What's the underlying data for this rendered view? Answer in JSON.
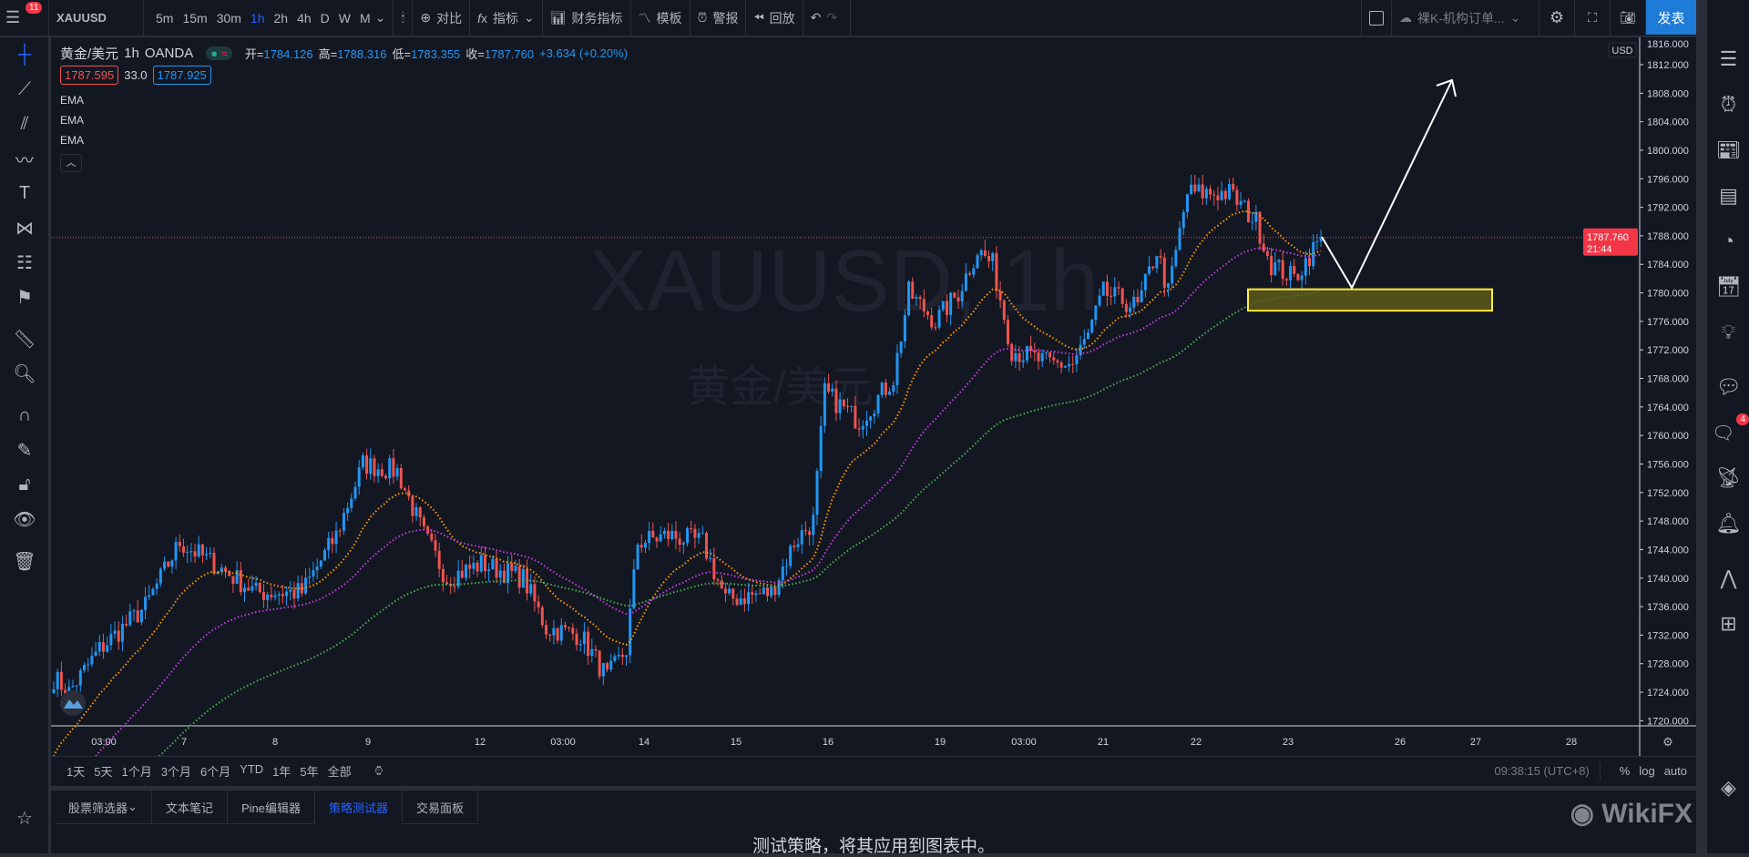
{
  "topbar": {
    "menu_badge": "11",
    "symbol": "XAUUSD",
    "timeframes": [
      "5m",
      "15m",
      "30m",
      "1h",
      "2h",
      "4h",
      "D",
      "W",
      "M"
    ],
    "active_timeframe": "1h",
    "compare": "对比",
    "indicators": "指标",
    "financials": "财务指标",
    "templates": "模板",
    "alerts": "警报",
    "replay": "回放",
    "layout_name": "裸K-机构订单...",
    "publish": "发表"
  },
  "legend": {
    "name": "黄金/美元",
    "interval": "1h",
    "source": "OANDA",
    "open_label": "开=",
    "open": "1784.126",
    "high_label": "高=",
    "high": "1788.316",
    "low_label": "低=",
    "low": "1783.355",
    "close_label": "收=",
    "close": "1787.760",
    "change": "+3.634 (+0.20%)",
    "bid": "1787.595",
    "spread": "33.0",
    "ask": "1787.925",
    "indicators": [
      "EMA",
      "EMA",
      "EMA"
    ]
  },
  "watermark": {
    "line1": "XAUUSD, 1h",
    "line2": "黄金/美元"
  },
  "chart_data": {
    "type": "candlestick",
    "symbol": "XAUUSD",
    "currency": "USD",
    "ylim": [
      1718,
      1817
    ],
    "yticks": [
      "1816.000",
      "1812.000",
      "1808.000",
      "1804.000",
      "1800.000",
      "1796.000",
      "1792.000",
      "1788.000",
      "1784.000",
      "1780.000",
      "1776.000",
      "1772.000",
      "1768.000",
      "1764.000",
      "1760.000",
      "1756.000",
      "1752.000",
      "1748.000",
      "1744.000",
      "1740.000",
      "1736.000",
      "1732.000",
      "1728.000",
      "1724.000",
      "1720.000"
    ],
    "xticks": [
      "03:00",
      "7",
      "8",
      "9",
      "12",
      "03:00",
      "14",
      "15",
      "16",
      "19",
      "03:00",
      "21",
      "22",
      "23",
      "26",
      "27",
      "28"
    ],
    "last_price": "1787.760",
    "countdown": "21:44",
    "approx_close_path_by_bar": [
      [
        0,
        1726
      ],
      [
        4,
        1724
      ],
      [
        12,
        1730
      ],
      [
        24,
        1736
      ],
      [
        33,
        1745
      ],
      [
        42,
        1742
      ],
      [
        53,
        1738
      ],
      [
        65,
        1738
      ],
      [
        74,
        1746
      ],
      [
        81,
        1756
      ],
      [
        90,
        1755
      ],
      [
        97,
        1746
      ],
      [
        103,
        1740
      ],
      [
        112,
        1742
      ],
      [
        123,
        1740
      ],
      [
        129,
        1733
      ],
      [
        138,
        1732
      ],
      [
        145,
        1726
      ],
      [
        150,
        1730
      ],
      [
        153,
        1745
      ],
      [
        161,
        1746
      ],
      [
        170,
        1745
      ],
      [
        176,
        1737
      ],
      [
        188,
        1738
      ],
      [
        194,
        1745
      ],
      [
        199,
        1748
      ],
      [
        202,
        1766
      ],
      [
        211,
        1762
      ],
      [
        220,
        1768
      ],
      [
        224,
        1780
      ],
      [
        231,
        1776
      ],
      [
        237,
        1780
      ],
      [
        242,
        1786
      ],
      [
        246,
        1784
      ],
      [
        251,
        1772
      ],
      [
        261,
        1770
      ],
      [
        267,
        1770
      ],
      [
        271,
        1774
      ],
      [
        275,
        1780
      ],
      [
        284,
        1778
      ],
      [
        289,
        1786
      ],
      [
        292,
        1780
      ],
      [
        297,
        1794
      ],
      [
        308,
        1794
      ],
      [
        315,
        1790
      ],
      [
        319,
        1784
      ],
      [
        325,
        1782
      ],
      [
        332,
        1787.76
      ]
    ],
    "ema_colors": [
      "#ff9800",
      "#c43ee0",
      "#4caf50"
    ],
    "up_color": "#2196f3",
    "down_color": "#ef5350",
    "annotations": {
      "zone": {
        "from": 1777.5,
        "to": 1780.5,
        "color": "#ffeb3b"
      },
      "arrow": "white projection arrow pointing up"
    }
  },
  "timeaxis": {
    "clock": "09:38:15 (UTC+8)",
    "pct": "%",
    "log": "log",
    "auto": "auto"
  },
  "ranges": [
    "1天",
    "5天",
    "1个月",
    "3个月",
    "6个月",
    "YTD",
    "1年",
    "5年",
    "全部"
  ],
  "panel": {
    "tabs": [
      "股票筛选器",
      "文本笔记",
      "Pine编辑器",
      "策略测试器",
      "交易面板"
    ],
    "active": "策略测试器",
    "message": "测试策略，将其应用到图表中。"
  },
  "rightbar": {
    "chat_badge": "4"
  },
  "logo": "WikiFX"
}
